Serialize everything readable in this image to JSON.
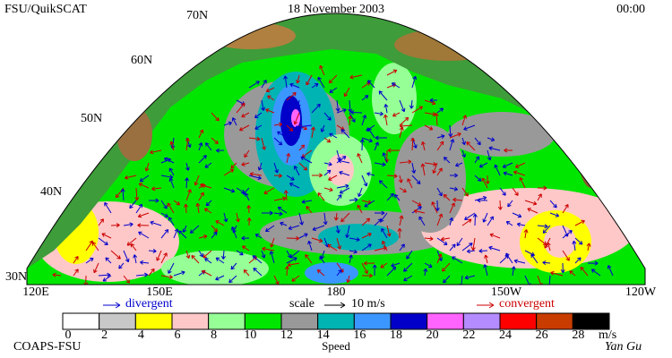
{
  "header": {
    "title": "FSU/QuikSCAT",
    "date": "18 November 2003",
    "time": "00:00"
  },
  "latitude_labels": [
    "70N",
    "60N",
    "50N",
    "40N",
    "30N"
  ],
  "longitude_labels": [
    "120E",
    "150E",
    "180",
    "150W",
    "120W"
  ],
  "legend": {
    "divergent": "divergent",
    "scale": "scale",
    "scale_value": "10 m/s",
    "convergent": "convergent"
  },
  "colorbar": {
    "ticks": [
      "0",
      "2",
      "4",
      "6",
      "8",
      "10",
      "12",
      "14",
      "16",
      "18",
      "20",
      "22",
      "24",
      "26",
      "28"
    ],
    "colors": [
      "#ffffff",
      "#c8c8c8",
      "#ffff00",
      "#ffc8c8",
      "#96ff96",
      "#00e600",
      "#999999",
      "#00b4b4",
      "#3c96ff",
      "#0000c8",
      "#ff64ff",
      "#b48cff",
      "#ff0000",
      "#c83c00",
      "#000000"
    ],
    "unit": "m/s",
    "label": "Speed"
  },
  "footer": {
    "credit": "COAPS-FSU",
    "author": "Yan Gu"
  }
}
